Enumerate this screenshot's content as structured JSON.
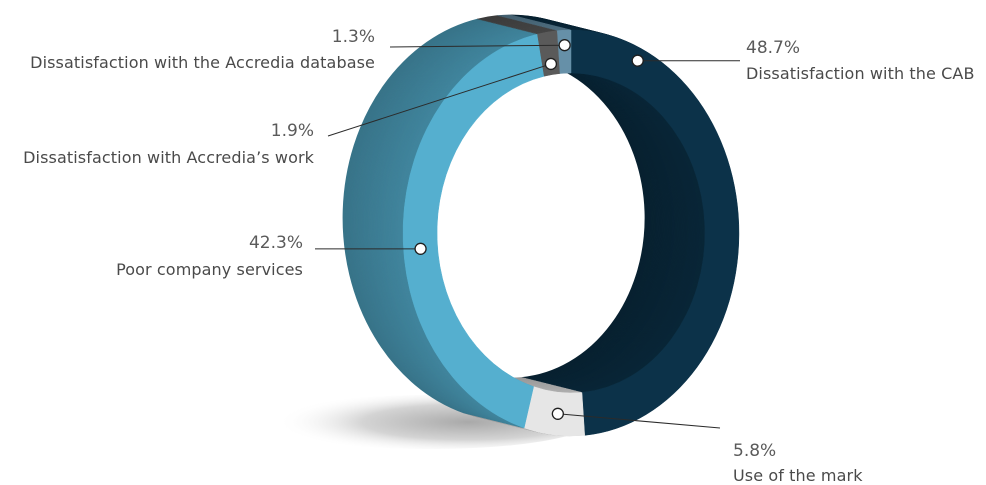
{
  "chart_data": {
    "type": "pie",
    "donut": true,
    "three_d": true,
    "slices": [
      {
        "label": "Dissatisfaction with the CAB",
        "value": 48.7,
        "value_label": "48.7%",
        "color": "#0c3249"
      },
      {
        "label": "Use of the mark",
        "value": 5.8,
        "value_label": "5.8%",
        "color": "#e6e6e6"
      },
      {
        "label": "Poor company services",
        "value": 42.3,
        "value_label": "42.3%",
        "color": "#55afcf"
      },
      {
        "label": "Dissatisfaction with Accredia’s work",
        "value": 1.9,
        "value_label": "1.9%",
        "color": "#5a5a5a"
      },
      {
        "label": "Dissatisfaction with the Accredia database",
        "value": 1.3,
        "value_label": "1.3%",
        "color": "#6690a8"
      }
    ]
  }
}
